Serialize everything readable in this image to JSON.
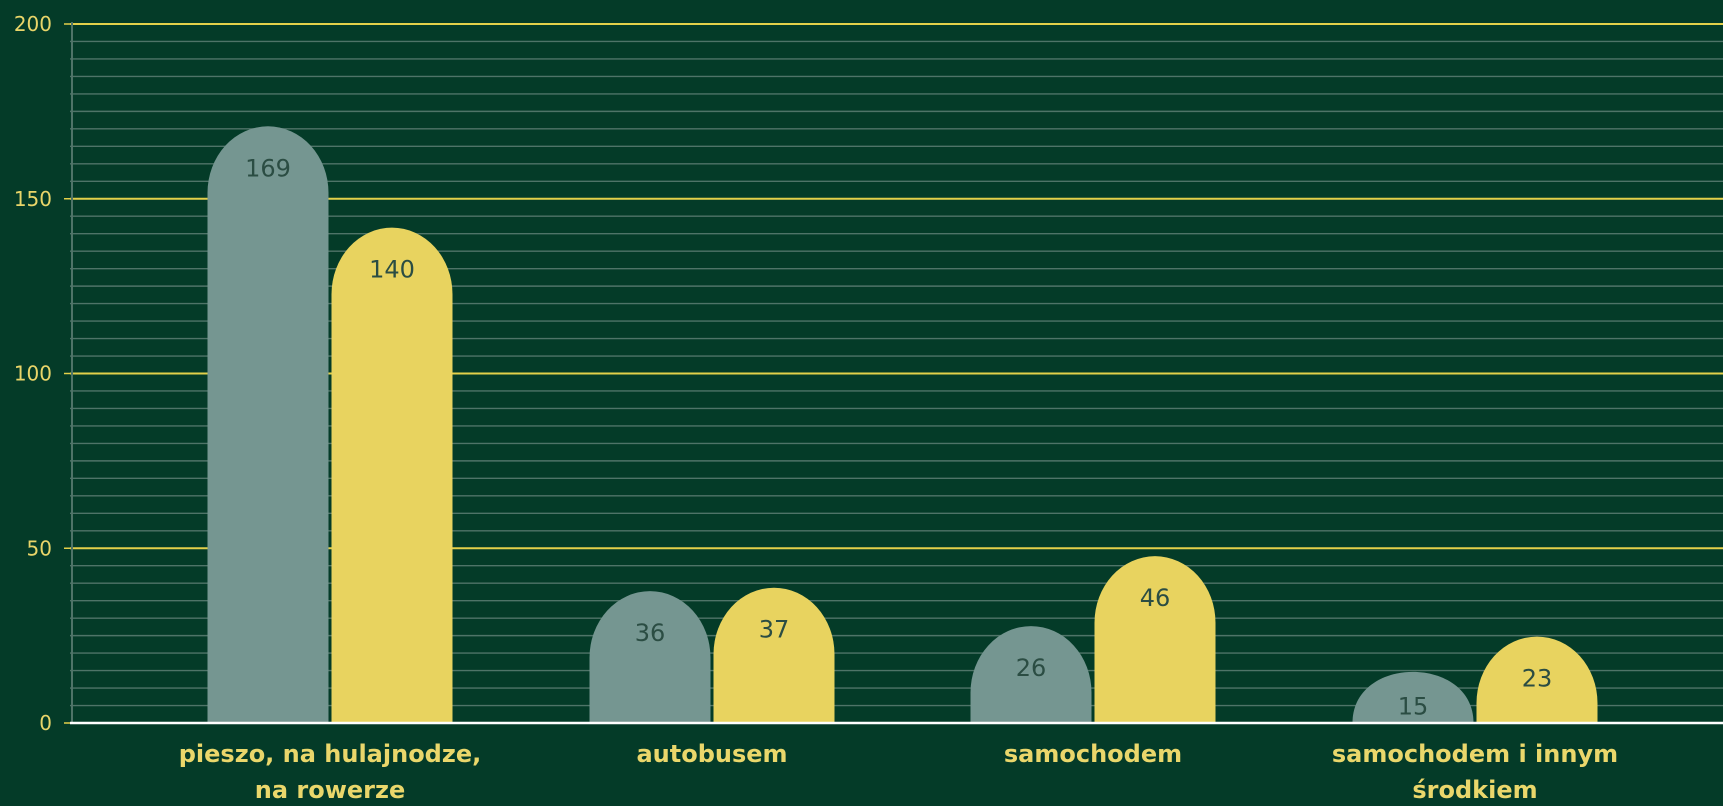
{
  "colors": {
    "background": "#043b28",
    "series_1": "#759691",
    "series_2": "#e8d35f",
    "major_gridline": "#e3d04a",
    "minor_gridline": "#4f7468",
    "baseline": "#ffffff",
    "tick_label": "#e9d569",
    "category_label": "#ead76b",
    "data_label": "#2b4d43"
  },
  "chart_data": {
    "type": "bar",
    "categories": [
      [
        "pieszo, na hulajnodze,",
        "na rowerze"
      ],
      [
        "autobusem"
      ],
      [
        "samochodem"
      ],
      [
        "samochodem i innym",
        "środkiem"
      ]
    ],
    "series": [
      {
        "values": [
          169,
          36,
          26,
          15
        ]
      },
      {
        "values": [
          140,
          37,
          46,
          23
        ]
      }
    ],
    "ylim": [
      0,
      200
    ],
    "yticks": [
      0,
      50,
      100,
      150,
      200
    ],
    "minor_step": 5,
    "title": "",
    "xlabel": "",
    "ylabel": "",
    "grid": true,
    "bar_shape": "rounded-top",
    "data_labels": true
  }
}
